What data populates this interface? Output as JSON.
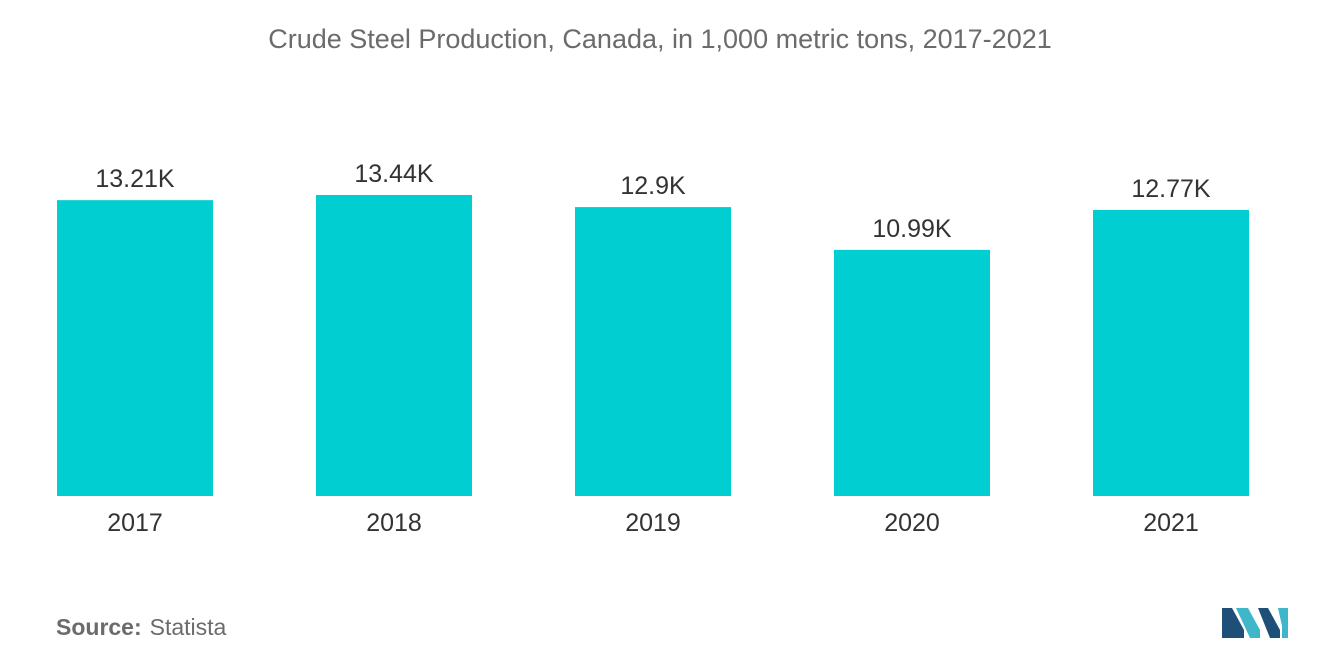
{
  "chart_data": {
    "type": "bar",
    "title": "Crude Steel Production, Canada, in 1,000 metric tons, 2017-2021",
    "categories": [
      "2017",
      "2018",
      "2019",
      "2020",
      "2021"
    ],
    "values": [
      13210,
      13440,
      12900,
      10990,
      12770
    ],
    "data_labels": [
      "13.21K",
      "13.44K",
      "12.9K",
      "10.99K",
      "12.77K"
    ],
    "ylim": [
      0,
      13440
    ],
    "grid": false,
    "legend": "none",
    "bar_color": "#00CED1"
  },
  "footer": {
    "source_label": "Source:",
    "source_value": "Statista"
  },
  "logo": {
    "icon": "mordor-intelligence-logo",
    "colors": [
      "#1F4E79",
      "#3FB7C9"
    ]
  }
}
